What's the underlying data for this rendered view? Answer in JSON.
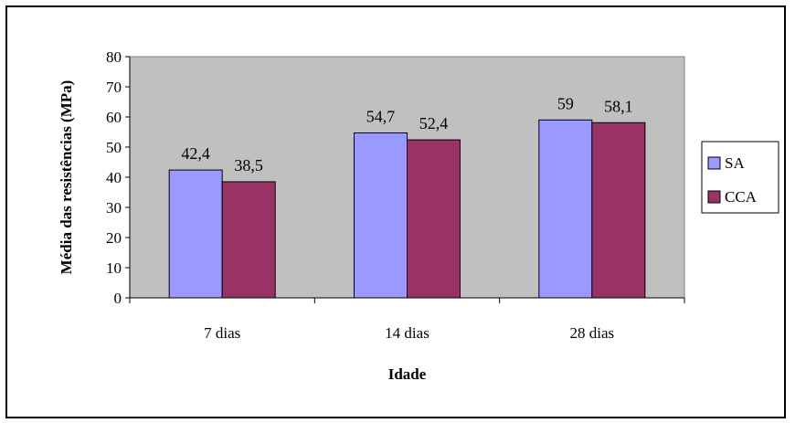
{
  "chart_data": {
    "type": "bar",
    "categories": [
      "7 dias",
      "14 dias",
      "28 dias"
    ],
    "series": [
      {
        "name": "SA",
        "values": [
          42.4,
          54.7,
          59
        ],
        "labels": [
          "42,4",
          "54,7",
          "59"
        ],
        "color": "#9999ff"
      },
      {
        "name": "CCA",
        "values": [
          38.5,
          52.4,
          58.1
        ],
        "labels": [
          "38,5",
          "52,4",
          "58,1"
        ],
        "color": "#993366"
      }
    ],
    "title": "",
    "xlabel": "Idade",
    "ylabel": "Média das resistências (MPa)",
    "ylim": [
      0,
      80
    ],
    "yticks": [
      0,
      10,
      20,
      30,
      40,
      50,
      60,
      70,
      80
    ],
    "grid": false,
    "legend": "right",
    "plot_background": "#c0c0c0"
  }
}
